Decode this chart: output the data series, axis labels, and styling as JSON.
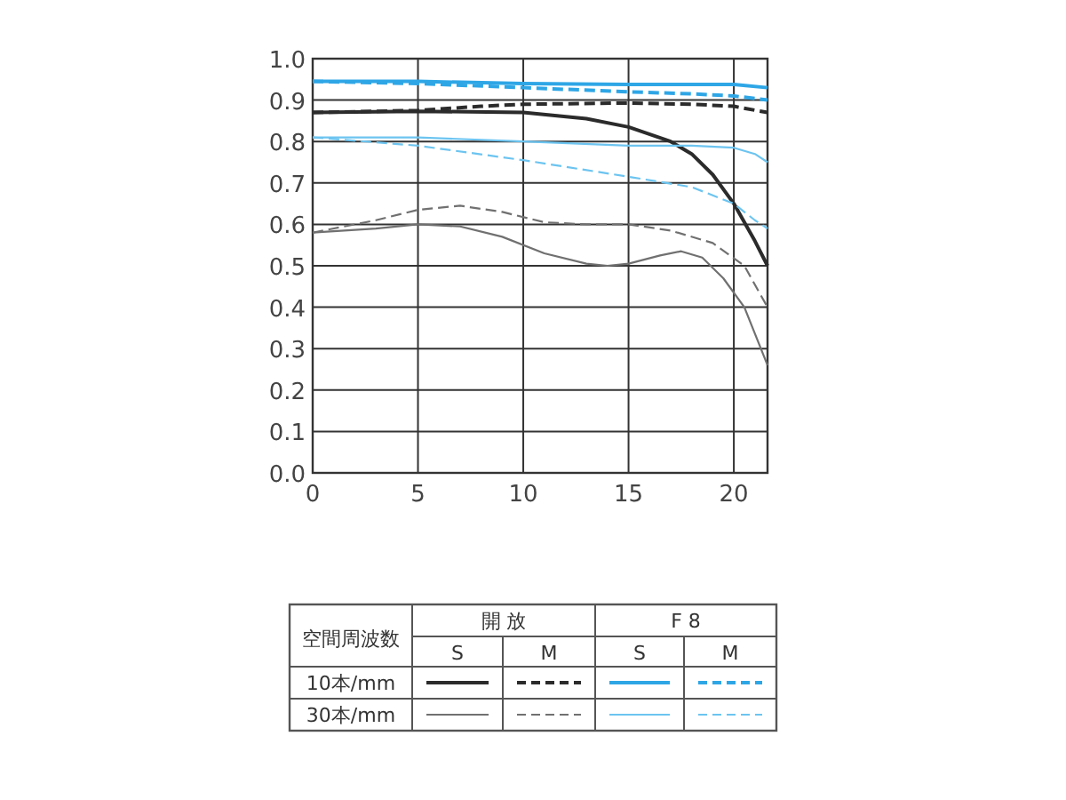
{
  "chart_data": {
    "type": "line",
    "xlim": [
      0,
      21.6
    ],
    "xticks": [
      0,
      5,
      10,
      15,
      20
    ],
    "ylim": [
      0,
      1
    ],
    "yticks": [
      {
        "value": 0,
        "label": "0.0"
      },
      0.1,
      0.2,
      0.3,
      0.4,
      0.5,
      0.6,
      0.7,
      0.8,
      0.9,
      {
        "value": 1,
        "label": "1.0"
      }
    ],
    "grid": true,
    "annotations": [
      "空間周波数",
      "開 放",
      "F 8",
      "S",
      "M",
      "S",
      "M",
      "10本/mm",
      "30本/mm"
    ],
    "series": [
      {
        "color": "#2b2b2b",
        "line_style": "solid",
        "x": [
          0,
          5,
          10,
          13,
          15,
          17,
          18,
          19,
          20,
          21,
          21.6
        ],
        "values": [
          0.87,
          0.873,
          0.87,
          0.855,
          0.835,
          0.8,
          0.77,
          0.72,
          0.65,
          0.56,
          0.5
        ]
      },
      {
        "color": "#2b2b2b",
        "line_style": "dashed",
        "x": [
          0,
          5,
          8,
          10,
          15,
          18,
          20,
          21.6
        ],
        "values": [
          0.87,
          0.875,
          0.885,
          0.89,
          0.893,
          0.89,
          0.885,
          0.87
        ]
      },
      {
        "color": "#2ea6e6",
        "line_style": "solid",
        "x": [
          0,
          5,
          10,
          15,
          20,
          21.6
        ],
        "values": [
          0.945,
          0.945,
          0.94,
          0.938,
          0.938,
          0.93
        ]
      },
      {
        "color": "#2ea6e6",
        "line_style": "dashed",
        "x": [
          0,
          5,
          10,
          15,
          18,
          20,
          21.6
        ],
        "values": [
          0.945,
          0.94,
          0.93,
          0.92,
          0.915,
          0.91,
          0.9
        ]
      },
      {
        "color": "#707070",
        "line_style": "solid",
        "x": [
          0,
          3,
          5,
          7,
          9,
          11,
          13,
          14,
          15,
          16.5,
          17.5,
          18.5,
          19.5,
          20.5,
          21.6
        ],
        "values": [
          0.58,
          0.59,
          0.6,
          0.595,
          0.57,
          0.53,
          0.505,
          0.5,
          0.505,
          0.525,
          0.535,
          0.52,
          0.47,
          0.4,
          0.26
        ]
      },
      {
        "color": "#707070",
        "line_style": "dashed",
        "x": [
          0,
          3,
          5,
          7,
          9,
          11,
          13,
          15,
          17,
          19,
          20.5,
          21.6
        ],
        "values": [
          0.58,
          0.61,
          0.635,
          0.645,
          0.63,
          0.605,
          0.6,
          0.6,
          0.585,
          0.555,
          0.5,
          0.4
        ]
      },
      {
        "color": "#6cc4f0",
        "line_style": "solid",
        "x": [
          0,
          5,
          10,
          15,
          18,
          20,
          21,
          21.6
        ],
        "values": [
          0.81,
          0.81,
          0.8,
          0.79,
          0.79,
          0.785,
          0.77,
          0.75
        ]
      },
      {
        "color": "#6cc4f0",
        "line_style": "dashed",
        "x": [
          0,
          5,
          10,
          15,
          18,
          20,
          21,
          21.6
        ],
        "values": [
          0.81,
          0.79,
          0.755,
          0.715,
          0.69,
          0.65,
          0.61,
          0.59
        ]
      }
    ]
  }
}
